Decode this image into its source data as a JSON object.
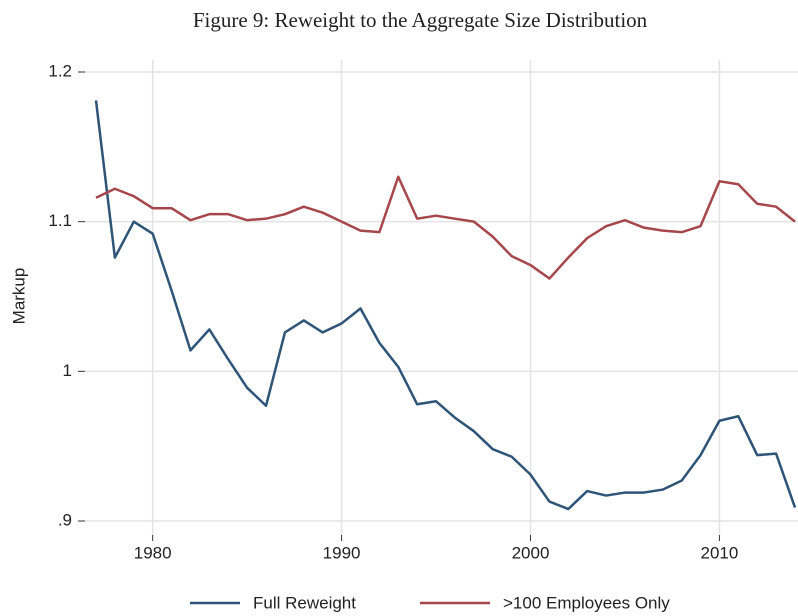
{
  "chart_data": {
    "type": "line",
    "title": "Figure 9: Reweight to the Aggregate Size Distribution",
    "y_label": "Markup",
    "x": [
      1977,
      1978,
      1979,
      1980,
      1981,
      1982,
      1983,
      1984,
      1985,
      1986,
      1987,
      1988,
      1989,
      1990,
      1991,
      1992,
      1993,
      1994,
      1995,
      1996,
      1997,
      1998,
      1999,
      2000,
      2001,
      2002,
      2003,
      2004,
      2005,
      2006,
      2007,
      2008,
      2009,
      2010,
      2011,
      2012,
      2013,
      2014
    ],
    "series": [
      {
        "name": "Full Reweight",
        "color": "#2e5477",
        "values": [
          1.181,
          1.076,
          1.1,
          1.092,
          1.054,
          1.014,
          1.028,
          1.008,
          0.989,
          0.977,
          1.026,
          1.034,
          1.026,
          1.032,
          1.042,
          1.019,
          1.003,
          0.978,
          0.98,
          0.969,
          0.96,
          0.948,
          0.943,
          0.931,
          0.913,
          0.908,
          0.92,
          0.917,
          0.919,
          0.919,
          0.921,
          0.927,
          0.944,
          0.967,
          0.97,
          0.944,
          0.945,
          0.909
        ]
      },
      {
        "name": ">100 Employees Only",
        "color": "#a5474b",
        "values": [
          1.116,
          1.122,
          1.117,
          1.109,
          1.109,
          1.101,
          1.105,
          1.105,
          1.101,
          1.102,
          1.105,
          1.11,
          1.106,
          1.1,
          1.094,
          1.093,
          1.13,
          1.102,
          1.104,
          1.102,
          1.1,
          1.09,
          1.077,
          1.071,
          1.062,
          1.076,
          1.089,
          1.097,
          1.101,
          1.096,
          1.094,
          1.093,
          1.097,
          1.127,
          1.125,
          1.112,
          1.11,
          1.1
        ]
      }
    ],
    "xlim": [
      1977,
      2014
    ],
    "xticks": [
      1980,
      1990,
      2000,
      2010
    ],
    "ylim": [
      0.9,
      1.2
    ],
    "yticks": [
      {
        "value": 0.9,
        "label": ".9"
      },
      1,
      1.1,
      1.2
    ],
    "grid": true,
    "legend": "bottom"
  }
}
